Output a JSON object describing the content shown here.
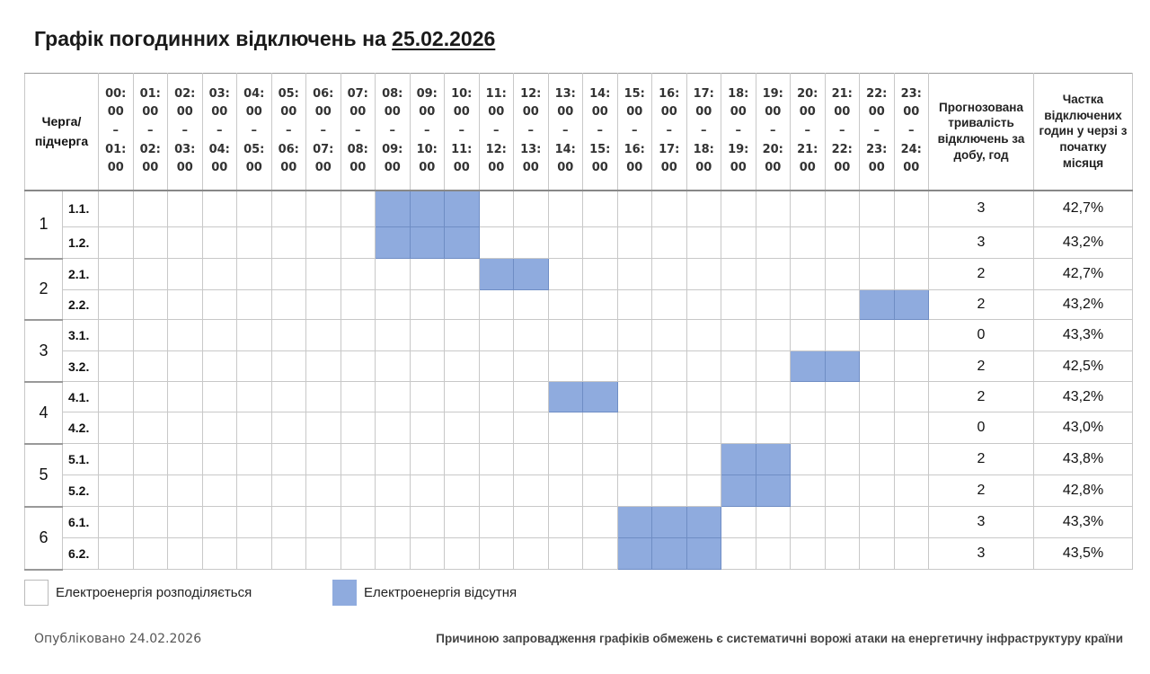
{
  "title": {
    "prefix": "Графік погодинних відключень на",
    "date": "25.02.2026"
  },
  "table": {
    "queue_header": "Черга/ підчерга",
    "hours": [
      {
        "start": [
          "00:",
          "00"
        ],
        "end": [
          "01:",
          "00"
        ]
      },
      {
        "start": [
          "01:",
          "00"
        ],
        "end": [
          "02:",
          "00"
        ]
      },
      {
        "start": [
          "02:",
          "00"
        ],
        "end": [
          "03:",
          "00"
        ]
      },
      {
        "start": [
          "03:",
          "00"
        ],
        "end": [
          "04:",
          "00"
        ]
      },
      {
        "start": [
          "04:",
          "00"
        ],
        "end": [
          "05:",
          "00"
        ]
      },
      {
        "start": [
          "05:",
          "00"
        ],
        "end": [
          "06:",
          "00"
        ]
      },
      {
        "start": [
          "06:",
          "00"
        ],
        "end": [
          "07:",
          "00"
        ]
      },
      {
        "start": [
          "07:",
          "00"
        ],
        "end": [
          "08:",
          "00"
        ]
      },
      {
        "start": [
          "08:",
          "00"
        ],
        "end": [
          "09:",
          "00"
        ]
      },
      {
        "start": [
          "09:",
          "00"
        ],
        "end": [
          "10:",
          "00"
        ]
      },
      {
        "start": [
          "10:",
          "00"
        ],
        "end": [
          "11:",
          "00"
        ]
      },
      {
        "start": [
          "11:",
          "00"
        ],
        "end": [
          "12:",
          "00"
        ]
      },
      {
        "start": [
          "12:",
          "00"
        ],
        "end": [
          "13:",
          "00"
        ]
      },
      {
        "start": [
          "13:",
          "00"
        ],
        "end": [
          "14:",
          "00"
        ]
      },
      {
        "start": [
          "14:",
          "00"
        ],
        "end": [
          "15:",
          "00"
        ]
      },
      {
        "start": [
          "15:",
          "00"
        ],
        "end": [
          "16:",
          "00"
        ]
      },
      {
        "start": [
          "16:",
          "00"
        ],
        "end": [
          "17:",
          "00"
        ]
      },
      {
        "start": [
          "17:",
          "00"
        ],
        "end": [
          "18:",
          "00"
        ]
      },
      {
        "start": [
          "18:",
          "00"
        ],
        "end": [
          "19:",
          "00"
        ]
      },
      {
        "start": [
          "19:",
          "00"
        ],
        "end": [
          "20:",
          "00"
        ]
      },
      {
        "start": [
          "20:",
          "00"
        ],
        "end": [
          "21:",
          "00"
        ]
      },
      {
        "start": [
          "21:",
          "00"
        ],
        "end": [
          "22:",
          "00"
        ]
      },
      {
        "start": [
          "22:",
          "00"
        ],
        "end": [
          "23:",
          "00"
        ]
      },
      {
        "start": [
          "23:",
          "00"
        ],
        "end": [
          "24:",
          "00"
        ]
      }
    ],
    "hour_dash": "–",
    "duration_header": "Прогнозована тривалість відключень за добу, год",
    "share_header": "Частка відключених годин у черзі з початку місяця",
    "groups": [
      {
        "label": "1",
        "subs": [
          {
            "label": "1.1.",
            "off": [
              8,
              9,
              10
            ],
            "duration": "3",
            "share": "42,7%"
          },
          {
            "label": "1.2.",
            "off": [
              8,
              9,
              10
            ],
            "duration": "3",
            "share": "43,2%"
          }
        ]
      },
      {
        "label": "2",
        "subs": [
          {
            "label": "2.1.",
            "off": [
              11,
              12
            ],
            "duration": "2",
            "share": "42,7%"
          },
          {
            "label": "2.2.",
            "off": [
              22,
              23
            ],
            "duration": "2",
            "share": "43,2%"
          }
        ]
      },
      {
        "label": "3",
        "subs": [
          {
            "label": "3.1.",
            "off": [],
            "duration": "0",
            "share": "43,3%"
          },
          {
            "label": "3.2.",
            "off": [
              20,
              21
            ],
            "duration": "2",
            "share": "42,5%"
          }
        ]
      },
      {
        "label": "4",
        "subs": [
          {
            "label": "4.1.",
            "off": [
              13,
              14
            ],
            "duration": "2",
            "share": "43,2%"
          },
          {
            "label": "4.2.",
            "off": [],
            "duration": "0",
            "share": "43,0%"
          }
        ]
      },
      {
        "label": "5",
        "subs": [
          {
            "label": "5.1.",
            "off": [
              18,
              19
            ],
            "duration": "2",
            "share": "43,8%"
          },
          {
            "label": "5.2.",
            "off": [
              18,
              19
            ],
            "duration": "2",
            "share": "42,8%"
          }
        ]
      },
      {
        "label": "6",
        "subs": [
          {
            "label": "6.1.",
            "off": [
              15,
              16,
              17
            ],
            "duration": "3",
            "share": "43,3%"
          },
          {
            "label": "6.2.",
            "off": [
              15,
              16,
              17
            ],
            "duration": "3",
            "share": "43,5%"
          }
        ]
      }
    ]
  },
  "legend": {
    "on_label": "Електроенергія розподіляється",
    "off_label": "Електроенергія відсутня"
  },
  "footer": {
    "published": "Опубліковано 24.02.2026",
    "reason": "Причиною запровадження графіків обмежень є систематичні ворожі атаки на енергетичну інфраструктуру країни"
  },
  "colors": {
    "outage": "#8fabde",
    "grid_line": "#c8c8c8"
  }
}
